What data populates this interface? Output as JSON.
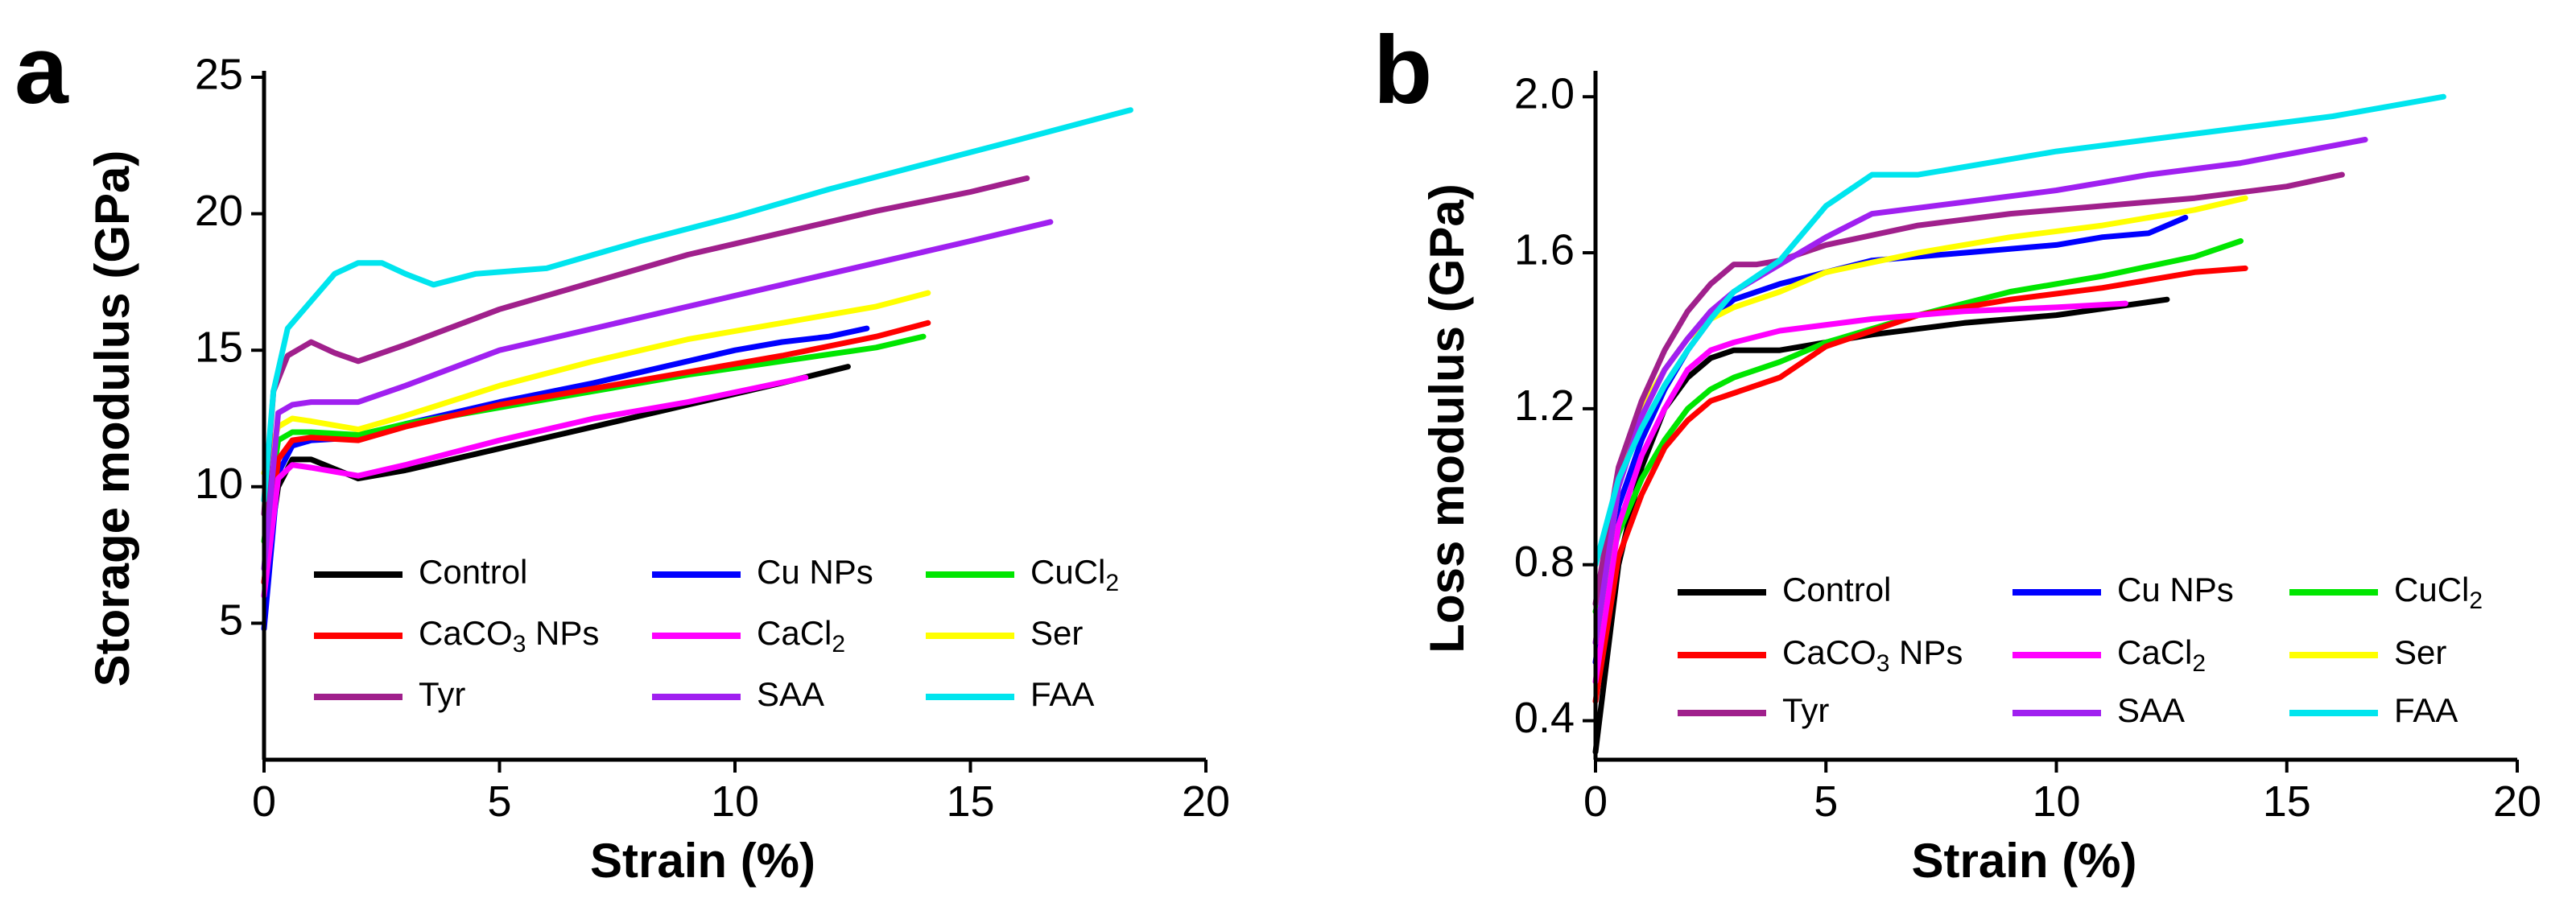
{
  "chart_data": [
    {
      "type": "line",
      "panel_label": "a",
      "xlabel": "Strain (%)",
      "ylabel": "Storage modulus (GPa)",
      "xlim": [
        0,
        20
      ],
      "ylim": [
        0,
        25
      ],
      "xticks": [
        0,
        5,
        10,
        15,
        20
      ],
      "yticks": [
        5,
        10,
        15,
        20,
        25
      ],
      "legend_position": "bottom",
      "series": [
        {
          "name": "Control",
          "color": "#000000",
          "x": [
            0,
            0.3,
            0.6,
            1,
            2,
            3,
            5,
            7,
            9,
            11,
            12.4
          ],
          "y": [
            6.5,
            10,
            11,
            11,
            10.3,
            10.6,
            11.4,
            12.2,
            13,
            13.8,
            14.4
          ]
        },
        {
          "name": "Cu NPs",
          "color": "#0000ff",
          "x": [
            0,
            0.3,
            0.6,
            1,
            2,
            3,
            5,
            7,
            9,
            10,
            11,
            12,
            12.8
          ],
          "y": [
            4.8,
            10.5,
            11.5,
            11.7,
            11.8,
            12.3,
            13.1,
            13.8,
            14.6,
            15,
            15.3,
            15.5,
            15.8
          ]
        },
        {
          "name": "CuCl2",
          "color": "#00e600",
          "x": [
            0,
            0.3,
            0.6,
            1,
            2,
            3,
            5,
            7,
            9,
            11,
            13,
            14
          ],
          "y": [
            8,
            11.7,
            12,
            12,
            11.9,
            12.3,
            12.9,
            13.5,
            14.1,
            14.6,
            15.1,
            15.5
          ]
        },
        {
          "name": "CaCO3 NPs",
          "color": "#ff0000",
          "x": [
            0,
            0.3,
            0.6,
            1,
            2,
            3,
            5,
            7,
            9,
            11,
            13,
            14.1
          ],
          "y": [
            6.5,
            11,
            11.7,
            11.8,
            11.7,
            12.2,
            13,
            13.6,
            14.2,
            14.8,
            15.5,
            16
          ]
        },
        {
          "name": "CaCl2",
          "color": "#ff00ff",
          "x": [
            0,
            0.3,
            0.6,
            1,
            2,
            3,
            5,
            7,
            9,
            11.5
          ],
          "y": [
            6,
            10.3,
            10.8,
            10.7,
            10.4,
            10.8,
            11.7,
            12.5,
            13.1,
            14
          ]
        },
        {
          "name": "Ser",
          "color": "#ffff00",
          "x": [
            0,
            0.3,
            0.6,
            1,
            2,
            3,
            5,
            7,
            9,
            11,
            13,
            14.1
          ],
          "y": [
            10.5,
            12.2,
            12.5,
            12.4,
            12.1,
            12.6,
            13.7,
            14.6,
            15.4,
            16,
            16.6,
            17.1
          ]
        },
        {
          "name": "Tyr",
          "color": "#a0208c",
          "x": [
            0,
            0.2,
            0.5,
            1,
            1.5,
            2,
            3,
            5,
            7,
            9,
            11,
            13,
            15,
            16.2
          ],
          "y": [
            9,
            13.5,
            14.8,
            15.3,
            14.9,
            14.6,
            15.2,
            16.5,
            17.5,
            18.5,
            19.3,
            20.1,
            20.8,
            21.3
          ]
        },
        {
          "name": "SAA",
          "color": "#a020f0",
          "x": [
            0,
            0.3,
            0.6,
            1,
            2,
            3,
            5,
            7,
            9,
            11,
            13,
            15,
            16.7
          ],
          "y": [
            7,
            12.7,
            13,
            13.1,
            13.1,
            13.7,
            15,
            15.8,
            16.6,
            17.4,
            18.2,
            19,
            19.7
          ]
        },
        {
          "name": "FAA",
          "color": "#00e5ee",
          "x": [
            0,
            0.2,
            0.5,
            1,
            1.5,
            2,
            2.5,
            3,
            3.6,
            4.5,
            6,
            8,
            10,
            12,
            14,
            16,
            18.4
          ],
          "y": [
            9.5,
            13.5,
            15.8,
            16.8,
            17.8,
            18.2,
            18.2,
            17.8,
            17.4,
            17.8,
            18,
            19,
            19.9,
            20.9,
            21.8,
            22.7,
            23.8
          ]
        }
      ]
    },
    {
      "type": "line",
      "panel_label": "b",
      "xlabel": "Strain (%)",
      "ylabel": "Loss modulus (GPa)",
      "xlim": [
        0,
        20
      ],
      "ylim": [
        0.3,
        2.05
      ],
      "xticks": [
        0,
        5,
        10,
        15,
        20
      ],
      "yticks": [
        0.4,
        0.8,
        1.2,
        1.6,
        2.0
      ],
      "ytick_labels": [
        "0.4",
        "0.8",
        "1.2",
        "1.6",
        "2.0"
      ],
      "legend_position": "bottom",
      "series": [
        {
          "name": "Control",
          "color": "#000000",
          "x": [
            0,
            0.5,
            1,
            1.5,
            2,
            2.5,
            3,
            4,
            6,
            8,
            10,
            12.4
          ],
          "y": [
            0.32,
            0.8,
            1.05,
            1.2,
            1.28,
            1.33,
            1.35,
            1.35,
            1.39,
            1.42,
            1.44,
            1.48
          ]
        },
        {
          "name": "Cu NPs",
          "color": "#0000ff",
          "x": [
            0,
            0.5,
            1,
            1.5,
            2,
            2.5,
            3,
            4,
            6,
            8,
            10,
            11,
            12,
            12.8
          ],
          "y": [
            0.55,
            0.95,
            1.12,
            1.25,
            1.35,
            1.43,
            1.48,
            1.52,
            1.58,
            1.6,
            1.62,
            1.64,
            1.65,
            1.69
          ]
        },
        {
          "name": "CuCl2",
          "color": "#00e600",
          "x": [
            0,
            0.5,
            1,
            1.5,
            2,
            2.5,
            3,
            4,
            5,
            7,
            9,
            11,
            13,
            14
          ],
          "y": [
            0.68,
            0.88,
            1.02,
            1.12,
            1.2,
            1.25,
            1.28,
            1.32,
            1.37,
            1.44,
            1.5,
            1.54,
            1.59,
            1.63
          ]
        },
        {
          "name": "CaCO3 NPs",
          "color": "#ff0000",
          "x": [
            0,
            0.5,
            1,
            1.5,
            2,
            2.5,
            3,
            4,
            5,
            7,
            9,
            11,
            13,
            14.1
          ],
          "y": [
            0.45,
            0.82,
            0.98,
            1.1,
            1.17,
            1.22,
            1.24,
            1.28,
            1.36,
            1.44,
            1.48,
            1.51,
            1.55,
            1.56
          ]
        },
        {
          "name": "CaCl2",
          "color": "#ff00ff",
          "x": [
            0,
            0.5,
            1,
            1.5,
            2,
            2.5,
            3,
            4,
            6,
            8,
            10,
            11.5
          ],
          "y": [
            0.5,
            0.9,
            1.08,
            1.2,
            1.3,
            1.35,
            1.37,
            1.4,
            1.43,
            1.45,
            1.46,
            1.47
          ]
        },
        {
          "name": "Ser",
          "color": "#ffff00",
          "x": [
            0,
            0.5,
            1,
            1.5,
            2,
            2.5,
            3,
            4,
            5,
            7,
            9,
            11,
            13,
            14.1
          ],
          "y": [
            0.6,
            1.0,
            1.2,
            1.3,
            1.38,
            1.43,
            1.46,
            1.5,
            1.55,
            1.6,
            1.64,
            1.67,
            1.71,
            1.74
          ]
        },
        {
          "name": "Tyr",
          "color": "#a0208c",
          "x": [
            0,
            0.5,
            1,
            1.5,
            2,
            2.5,
            3,
            3.5,
            4,
            5,
            7,
            9,
            11,
            13,
            15,
            16.2
          ],
          "y": [
            0.7,
            1.05,
            1.22,
            1.35,
            1.45,
            1.52,
            1.57,
            1.57,
            1.58,
            1.62,
            1.67,
            1.7,
            1.72,
            1.74,
            1.77,
            1.8
          ]
        },
        {
          "name": "SAA",
          "color": "#a020f0",
          "x": [
            0,
            0.5,
            1,
            1.5,
            2,
            2.5,
            3,
            4,
            5,
            6,
            8,
            10,
            12,
            14,
            16.7
          ],
          "y": [
            0.6,
            1.0,
            1.18,
            1.3,
            1.38,
            1.45,
            1.5,
            1.57,
            1.64,
            1.7,
            1.73,
            1.76,
            1.8,
            1.83,
            1.89
          ]
        },
        {
          "name": "FAA",
          "color": "#00e5ee",
          "x": [
            0,
            0.5,
            1,
            1.5,
            2,
            2.5,
            3,
            4,
            5,
            6,
            7,
            8,
            10,
            12,
            14,
            16,
            18.4
          ],
          "y": [
            0.8,
            1.02,
            1.15,
            1.26,
            1.35,
            1.43,
            1.5,
            1.58,
            1.72,
            1.8,
            1.8,
            1.82,
            1.86,
            1.89,
            1.92,
            1.95,
            2.0
          ]
        }
      ]
    }
  ],
  "legend_labels": [
    {
      "text": "Control"
    },
    {
      "text": "Cu NPs"
    },
    {
      "text": "CuCl",
      "sub": "2"
    },
    {
      "text": "CaCO",
      "sub": "3",
      "after": " NPs"
    },
    {
      "text": "CaCl",
      "sub": "2"
    },
    {
      "text": "Ser"
    },
    {
      "text": "Tyr"
    },
    {
      "text": "SAA"
    },
    {
      "text": "FAA"
    }
  ]
}
